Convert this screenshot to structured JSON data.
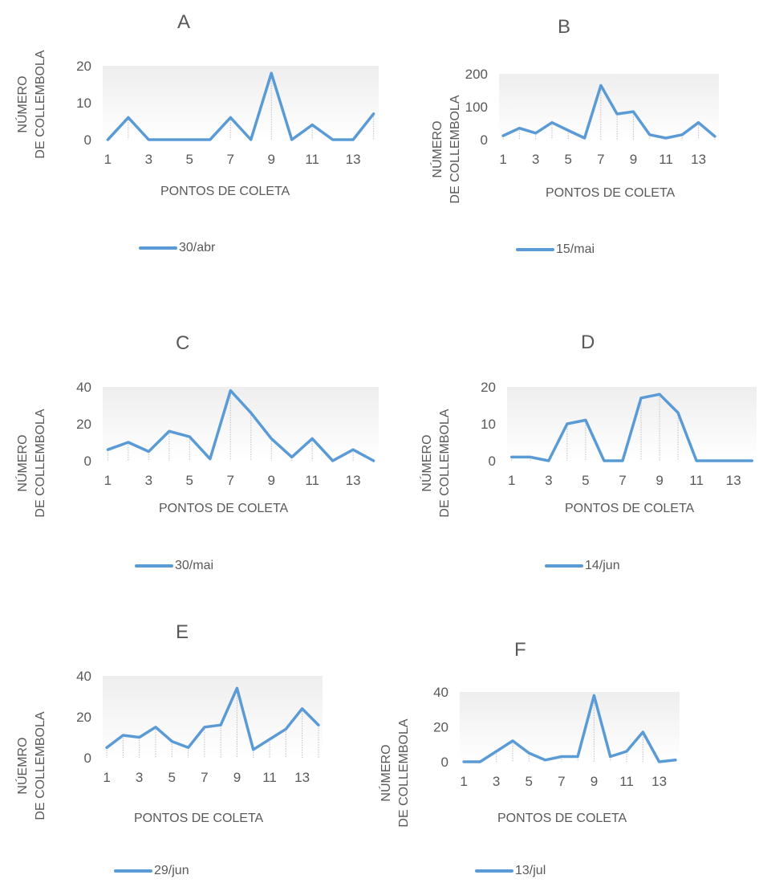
{
  "chart_data": [
    {
      "type": "line",
      "panel": "A",
      "ylabel": [
        "NÚMERO",
        "DE COLLEMBOLA"
      ],
      "xlabel": "PONTOS DE COLETA",
      "yticks": [
        0,
        10,
        20
      ],
      "ylim": [
        0,
        20
      ],
      "x": [
        1,
        2,
        3,
        4,
        5,
        6,
        7,
        8,
        9,
        10,
        11,
        12,
        13,
        14
      ],
      "xticks": [
        1,
        3,
        5,
        7,
        9,
        11,
        13
      ],
      "series": [
        {
          "name": "30/abr",
          "values": [
            0,
            6,
            0,
            0,
            0,
            0,
            6,
            0,
            18,
            0,
            4,
            0,
            0,
            7
          ]
        }
      ],
      "color": "#5B9BD5"
    },
    {
      "type": "line",
      "panel": "B",
      "ylabel": [
        "NÚMERO",
        "DE COLLEMBOLA"
      ],
      "xlabel": "PONTOS DE COLETA",
      "yticks": [
        0,
        100,
        200
      ],
      "ylim": [
        0,
        200
      ],
      "x": [
        1,
        2,
        3,
        4,
        5,
        6,
        7,
        8,
        9,
        10,
        11,
        12,
        13,
        14
      ],
      "xticks": [
        1,
        3,
        5,
        7,
        9,
        11,
        13
      ],
      "series": [
        {
          "name": "15/mai",
          "values": [
            12,
            35,
            20,
            52,
            28,
            5,
            165,
            78,
            85,
            15,
            5,
            15,
            52,
            10
          ]
        }
      ],
      "color": "#5B9BD5"
    },
    {
      "type": "line",
      "panel": "C",
      "ylabel": [
        "NÚMERO",
        "DE COLLEMBOLA"
      ],
      "xlabel": "PONTOS DE COLETA",
      "yticks": [
        0,
        20,
        40
      ],
      "ylim": [
        0,
        40
      ],
      "x": [
        1,
        2,
        3,
        4,
        5,
        6,
        7,
        8,
        9,
        10,
        11,
        12,
        13,
        14
      ],
      "xticks": [
        1,
        3,
        5,
        7,
        9,
        11,
        13
      ],
      "series": [
        {
          "name": "30/mai",
          "values": [
            6,
            10,
            5,
            16,
            13,
            1,
            38,
            26,
            12,
            2,
            12,
            0,
            6,
            0
          ]
        }
      ],
      "color": "#5B9BD5"
    },
    {
      "type": "line",
      "panel": "D",
      "ylabel": [
        "NÚMERO",
        "DE COLLEMBOLA"
      ],
      "xlabel": "PONTOS DE COLETA",
      "yticks": [
        0,
        10,
        20
      ],
      "ylim": [
        0,
        20
      ],
      "x": [
        1,
        2,
        3,
        4,
        5,
        6,
        7,
        8,
        9,
        10,
        11,
        12,
        13,
        14
      ],
      "xticks": [
        1,
        3,
        5,
        7,
        9,
        11,
        13
      ],
      "series": [
        {
          "name": "14/jun",
          "values": [
            1,
            1,
            0,
            10,
            11,
            0,
            0,
            17,
            18,
            13,
            0,
            0,
            0,
            0
          ]
        }
      ],
      "color": "#5B9BD5"
    },
    {
      "type": "line",
      "panel": "E",
      "ylabel": [
        "NÚEMRO",
        "DE COLLEMBOLA"
      ],
      "xlabel": "PONTOS DE COLETA",
      "yticks": [
        0,
        20,
        40
      ],
      "ylim": [
        0,
        40
      ],
      "x": [
        1,
        2,
        3,
        4,
        5,
        6,
        7,
        8,
        9,
        10,
        11,
        12,
        13,
        14
      ],
      "xticks": [
        1,
        3,
        5,
        7,
        9,
        11,
        13
      ],
      "series": [
        {
          "name": "29/jun",
          "values": [
            5,
            11,
            10,
            15,
            8,
            5,
            15,
            16,
            34,
            4,
            9,
            14,
            24,
            16
          ]
        }
      ],
      "color": "#5B9BD5"
    },
    {
      "type": "line",
      "panel": "F",
      "ylabel": [
        "NÚMERO",
        "DE COLLEMBOLA"
      ],
      "xlabel": "PONTOS DE COLETA",
      "yticks": [
        0,
        20,
        40
      ],
      "ylim": [
        0,
        40
      ],
      "x": [
        1,
        2,
        3,
        4,
        5,
        6,
        7,
        8,
        9,
        10,
        11,
        12,
        13,
        14
      ],
      "xticks": [
        1,
        3,
        5,
        7,
        9,
        11,
        13
      ],
      "series": [
        {
          "name": "13/jul",
          "values": [
            0,
            0,
            6,
            12,
            5,
            1,
            3,
            3,
            38,
            3,
            6,
            17,
            0,
            1
          ]
        }
      ],
      "color": "#5B9BD5"
    }
  ]
}
